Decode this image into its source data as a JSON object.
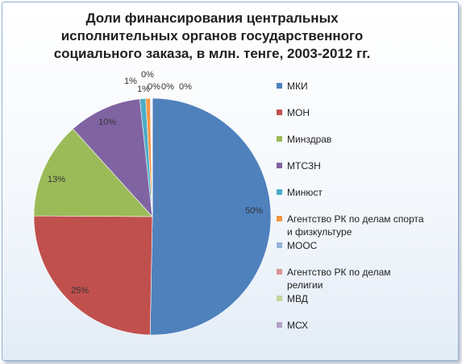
{
  "chart_data": {
    "type": "pie",
    "title": "Доли финансирования центральных исполнительных органов государственного социального заказа, в млн. тенге, 2003-2012 гг.",
    "categories": [
      "МКИ",
      "МОН",
      "Минздрав",
      "МТСЗН",
      "Минюст",
      "Агентство РК по делам спорта и физкультуре",
      "МООС",
      "Агентство РК по делам религии",
      "МВД",
      "МСХ"
    ],
    "values": [
      50.3,
      24.8,
      13.2,
      10.0,
      0.8,
      0.6,
      0.1,
      0.1,
      0.05,
      0.05
    ],
    "data_labels": [
      "50%",
      "25%",
      "13%",
      "10%",
      "1%",
      "1%",
      "0%",
      "0%",
      "0%",
      "0%"
    ],
    "colors": [
      "#4f81bd",
      "#c0504d",
      "#9bbb59",
      "#8064a2",
      "#4bacc6",
      "#f79646",
      "#95b3d7",
      "#d99694",
      "#c3d69b",
      "#b2a1c7"
    ],
    "legend_position": "right"
  }
}
